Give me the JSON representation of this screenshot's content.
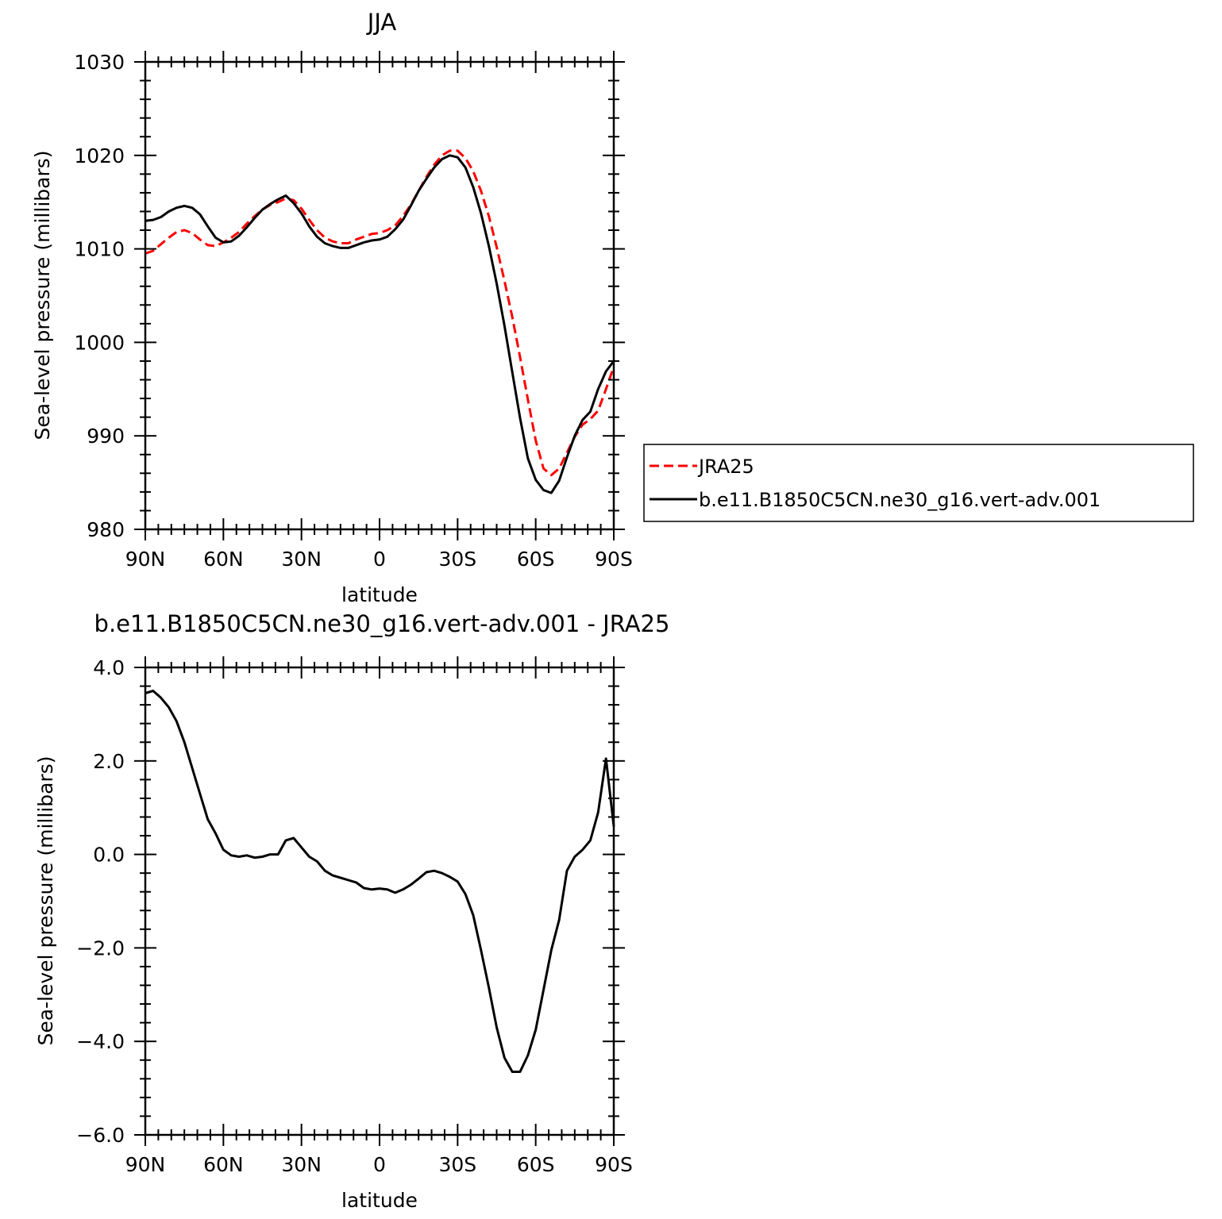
{
  "chart_data": [
    {
      "type": "line",
      "title": "JJA",
      "xlabel": "latitude",
      "ylabel": "Sea-level pressure (millibars)",
      "xlim": [
        90,
        -90
      ],
      "ylim": [
        980,
        1030
      ],
      "xticks": [
        {
          "value": 90,
          "label": "90N"
        },
        {
          "value": 60,
          "label": "60N"
        },
        {
          "value": 30,
          "label": "30N"
        },
        {
          "value": 0,
          "label": "0"
        },
        {
          "value": -30,
          "label": "30S"
        },
        {
          "value": -60,
          "label": "60S"
        },
        {
          "value": -90,
          "label": "90S"
        }
      ],
      "yticks": [
        {
          "value": 1030,
          "label": "1030"
        },
        {
          "value": 1020,
          "label": "1020"
        },
        {
          "value": 1010,
          "label": "1010"
        },
        {
          "value": 1000,
          "label": "1000"
        },
        {
          "value": 990,
          "label": "990"
        },
        {
          "value": 980,
          "label": "980"
        }
      ],
      "legend": "right",
      "series": [
        {
          "name": "JRA25",
          "color": "#ff0000",
          "dash": "dashed",
          "x": [
            90,
            87,
            84,
            81,
            78,
            75,
            72,
            69,
            66,
            63,
            60,
            57,
            54,
            51,
            48,
            45,
            42,
            39,
            36,
            33,
            30,
            27,
            24,
            21,
            18,
            15,
            12,
            9,
            6,
            3,
            0,
            -3,
            -6,
            -9,
            -12,
            -15,
            -18,
            -21,
            -24,
            -27,
            -30,
            -33,
            -36,
            -39,
            -42,
            -45,
            -48,
            -51,
            -54,
            -57,
            -60,
            -63,
            -66,
            -69,
            -72,
            -75,
            -78,
            -81,
            -84,
            -87,
            -90
          ],
          "y": [
            1009.5,
            1009.8,
            1010.5,
            1011.2,
            1011.8,
            1012.0,
            1011.7,
            1011.0,
            1010.4,
            1010.3,
            1010.7,
            1011.2,
            1011.8,
            1012.7,
            1013.5,
            1014.2,
            1014.7,
            1015.0,
            1015.4,
            1015.2,
            1014.3,
            1013.1,
            1012.0,
            1011.2,
            1010.8,
            1010.6,
            1010.6,
            1011.0,
            1011.3,
            1011.6,
            1011.7,
            1012.0,
            1012.5,
            1013.5,
            1014.7,
            1016.2,
            1017.7,
            1019.0,
            1020.0,
            1020.5,
            1020.5,
            1019.7,
            1018.3,
            1016.2,
            1013.5,
            1010.2,
            1006.6,
            1002.7,
            998.4,
            993.9,
            989.5,
            986.5,
            985.8,
            986.5,
            988.2,
            989.9,
            991.2,
            991.8,
            992.7,
            995.0,
            997.4
          ]
        },
        {
          "name": "b.e11.B1850C5CN.ne30_g16.vert-adv.001",
          "color": "#000000",
          "dash": "solid",
          "x": [
            90,
            87,
            84,
            81,
            78,
            75,
            72,
            69,
            66,
            63,
            60,
            57,
            54,
            51,
            48,
            45,
            42,
            39,
            36,
            33,
            30,
            27,
            24,
            21,
            18,
            15,
            12,
            9,
            6,
            3,
            0,
            -3,
            -6,
            -9,
            -12,
            -15,
            -18,
            -21,
            -24,
            -27,
            -30,
            -33,
            -36,
            -39,
            -42,
            -45,
            -48,
            -51,
            -54,
            -57,
            -60,
            -63,
            -66,
            -69,
            -72,
            -75,
            -78,
            -81,
            -84,
            -87,
            -90
          ],
          "y": [
            1013.0,
            1013.1,
            1013.4,
            1014.0,
            1014.4,
            1014.6,
            1014.4,
            1013.7,
            1012.4,
            1011.2,
            1010.7,
            1010.8,
            1011.4,
            1012.3,
            1013.3,
            1014.2,
            1014.8,
            1015.3,
            1015.7,
            1014.9,
            1013.8,
            1012.4,
            1011.3,
            1010.6,
            1010.3,
            1010.1,
            1010.1,
            1010.4,
            1010.7,
            1010.9,
            1011.0,
            1011.3,
            1012.1,
            1013.1,
            1014.6,
            1016.2,
            1017.5,
            1018.7,
            1019.6,
            1020.0,
            1019.8,
            1018.7,
            1016.6,
            1013.8,
            1010.3,
            1006.3,
            1001.8,
            996.8,
            991.9,
            987.6,
            985.3,
            984.2,
            983.9,
            985.2,
            987.7,
            990.0,
            991.7,
            992.6,
            995.0,
            996.9,
            998.0
          ]
        }
      ]
    },
    {
      "type": "line",
      "title": "b.e11.B1850C5CN.ne30_g16.vert-adv.001  -  JRA25",
      "xlabel": "latitude",
      "ylabel": "Sea-level pressure (millibars)",
      "xlim": [
        90,
        -90
      ],
      "ylim": [
        -6,
        4
      ],
      "xticks": [
        {
          "value": 90,
          "label": "90N"
        },
        {
          "value": 60,
          "label": "60N"
        },
        {
          "value": 30,
          "label": "30N"
        },
        {
          "value": 0,
          "label": "0"
        },
        {
          "value": -30,
          "label": "30S"
        },
        {
          "value": -60,
          "label": "60S"
        },
        {
          "value": -90,
          "label": "90S"
        }
      ],
      "yticks": [
        {
          "value": 4,
          "label": "4.0"
        },
        {
          "value": 2,
          "label": "2.0"
        },
        {
          "value": 0,
          "label": "0.0"
        },
        {
          "value": -2,
          "label": "−2.0"
        },
        {
          "value": -4,
          "label": "−4.0"
        },
        {
          "value": -6,
          "label": "−6.0"
        }
      ],
      "series": [
        {
          "color": "#000000",
          "dash": "solid",
          "x": [
            90,
            87,
            84,
            81,
            78,
            75,
            72,
            69,
            66,
            63,
            60,
            57,
            54,
            51,
            48,
            45,
            42,
            39,
            36,
            33,
            30,
            27,
            24,
            21,
            18,
            15,
            12,
            9,
            6,
            3,
            0,
            -3,
            -6,
            -9,
            -12,
            -15,
            -18,
            -21,
            -24,
            -27,
            -30,
            -33,
            -36,
            -39,
            -42,
            -45,
            -48,
            -51,
            -54,
            -57,
            -60,
            -63,
            -66,
            -69,
            -72,
            -75,
            -78,
            -81,
            -84,
            -87,
            -90
          ],
          "y": [
            3.45,
            3.5,
            3.35,
            3.15,
            2.85,
            2.4,
            1.85,
            1.3,
            0.75,
            0.45,
            0.1,
            -0.02,
            -0.05,
            -0.02,
            -0.07,
            -0.05,
            0.0,
            0.0,
            0.3,
            0.35,
            0.15,
            -0.05,
            -0.15,
            -0.35,
            -0.45,
            -0.5,
            -0.55,
            -0.6,
            -0.72,
            -0.75,
            -0.73,
            -0.75,
            -0.82,
            -0.75,
            -0.65,
            -0.52,
            -0.38,
            -0.35,
            -0.4,
            -0.48,
            -0.58,
            -0.85,
            -1.3,
            -2.05,
            -2.85,
            -3.7,
            -4.35,
            -4.65,
            -4.65,
            -4.3,
            -3.75,
            -2.9,
            -2.05,
            -1.4,
            -0.35,
            -0.05,
            0.1,
            0.3,
            0.9,
            2.05,
            0.6
          ]
        }
      ]
    }
  ]
}
